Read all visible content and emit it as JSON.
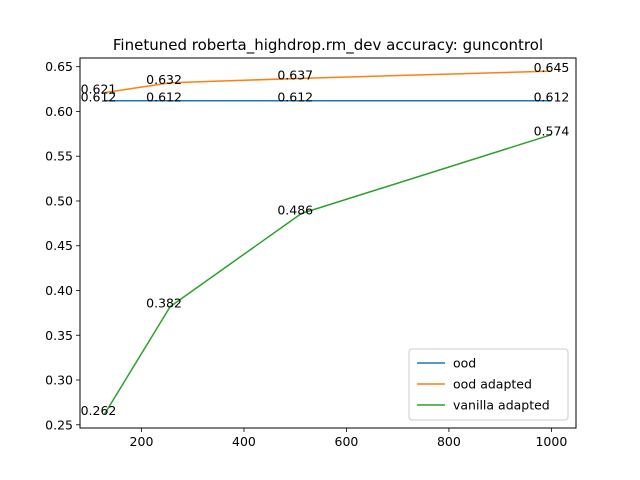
{
  "chart_data": {
    "type": "line",
    "title": "Finetuned roberta_highdrop.rm_dev accuracy: guncontrol",
    "xlabel": "",
    "ylabel": "",
    "x": [
      128,
      256,
      512,
      1000
    ],
    "xlim": [
      80,
      1048
    ],
    "ylim": [
      0.2464,
      0.6597
    ],
    "xticks": [
      200,
      400,
      600,
      800,
      1000
    ],
    "yticks": [
      0.25,
      0.3,
      0.35,
      0.4,
      0.45,
      0.5,
      0.55,
      0.6,
      0.65
    ],
    "ytick_labels": [
      "0.25",
      "0.30",
      "0.35",
      "0.40",
      "0.45",
      "0.50",
      "0.55",
      "0.60",
      "0.65"
    ],
    "grid": false,
    "legend_position": "lower right",
    "series": [
      {
        "name": "ood",
        "color": "#1f77b4",
        "values": [
          0.612,
          0.612,
          0.612,
          0.612
        ],
        "labels": [
          "0.612",
          "0.612",
          "0.612",
          "0.612"
        ]
      },
      {
        "name": "ood adapted",
        "color": "#ff7f0e",
        "values": [
          0.621,
          0.632,
          0.637,
          0.645
        ],
        "labels": [
          "0.621",
          "0.632",
          "0.637",
          "0.645"
        ]
      },
      {
        "name": "vanilla adapted",
        "color": "#2ca02c",
        "values": [
          0.262,
          0.382,
          0.486,
          0.574
        ],
        "labels": [
          "0.262",
          "0.382",
          "0.486",
          "0.574"
        ]
      }
    ]
  }
}
